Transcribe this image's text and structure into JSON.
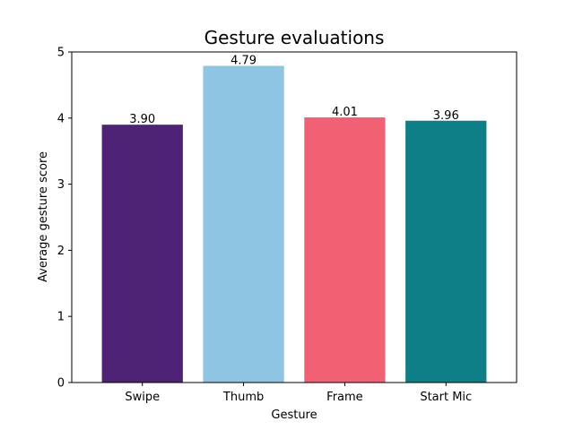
{
  "chart_data": {
    "type": "bar",
    "title": "Gesture evaluations",
    "xlabel": "Gesture",
    "ylabel": "Average gesture score",
    "categories": [
      "Swipe",
      "Thumb",
      "Frame",
      "Start Mic"
    ],
    "values": [
      3.9,
      4.79,
      4.01,
      3.96
    ],
    "value_labels": [
      "3.90",
      "4.79",
      "4.01",
      "3.96"
    ],
    "colors": [
      "#4e2375",
      "#8ec5e3",
      "#f26074",
      "#0e7f87"
    ],
    "ylim": [
      0,
      5
    ],
    "yticks": [
      0,
      1,
      2,
      3,
      4,
      5
    ],
    "grid": false,
    "legend": "none"
  }
}
